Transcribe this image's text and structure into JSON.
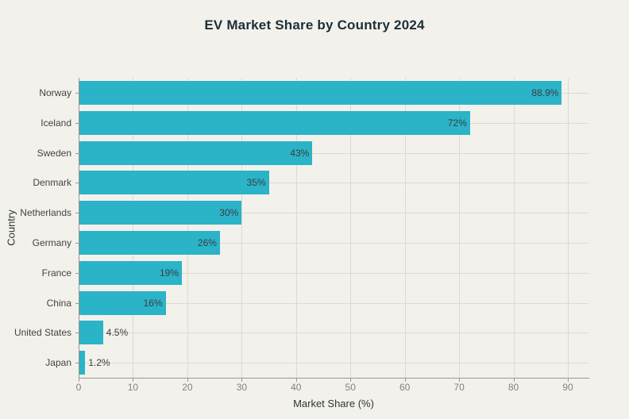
{
  "chart_data": {
    "type": "bar",
    "orientation": "horizontal",
    "title": "EV Market Share by Country 2024",
    "xlabel": "Market Share (%)",
    "ylabel": "Country",
    "categories": [
      "Norway",
      "Iceland",
      "Sweden",
      "Denmark",
      "Netherlands",
      "Germany",
      "France",
      "China",
      "United States",
      "Japan"
    ],
    "values": [
      88.9,
      72,
      43,
      35,
      30,
      26,
      19,
      16,
      4.5,
      1.2
    ],
    "value_labels": [
      "88.9%",
      "72%",
      "43%",
      "35%",
      "30%",
      "26%",
      "19%",
      "16%",
      "4.5%",
      "1.2%"
    ],
    "x_ticks": [
      "0",
      "10",
      "20",
      "30",
      "40",
      "50",
      "60",
      "70",
      "80",
      "90"
    ],
    "x_tick_values": [
      0,
      10,
      20,
      30,
      40,
      50,
      60,
      70,
      80,
      90
    ],
    "xlim": [
      0,
      93.8
    ],
    "grid": true,
    "legend": false,
    "colors": {
      "bar": "#2bb3c8",
      "background": "#f3f1eb",
      "grid": "#dcdad1",
      "spine": "#99978f",
      "title": "#1b2f38",
      "bar_label": "#3a3e3f",
      "category_label": "#434343",
      "tick_label": "#83827c",
      "axis_title": "#2e3436"
    }
  }
}
